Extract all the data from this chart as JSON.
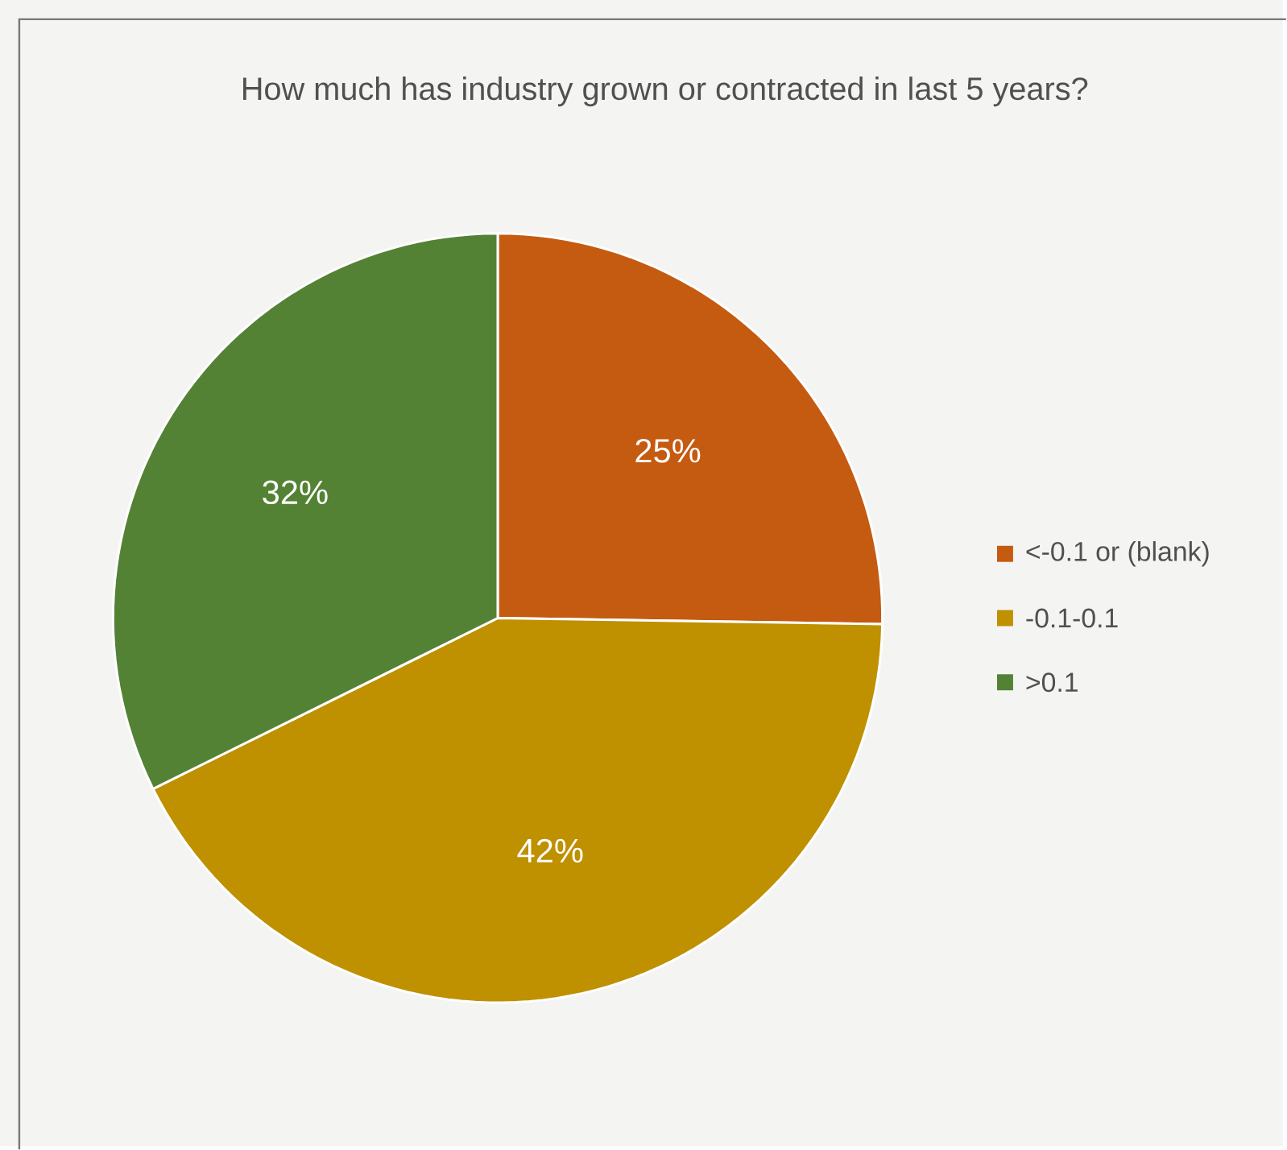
{
  "chart_data": {
    "type": "pie",
    "title": "How much has industry grown or contracted in last 5 years?",
    "categories": [
      "<-0.1 or (blank)",
      "-0.1-0.1",
      ">0.1"
    ],
    "values": [
      25,
      42,
      32
    ],
    "value_labels": [
      "25%",
      "42%",
      "32%"
    ],
    "colors": [
      "#c55a11",
      "#bf9000",
      "#548235"
    ],
    "legend": "right"
  }
}
